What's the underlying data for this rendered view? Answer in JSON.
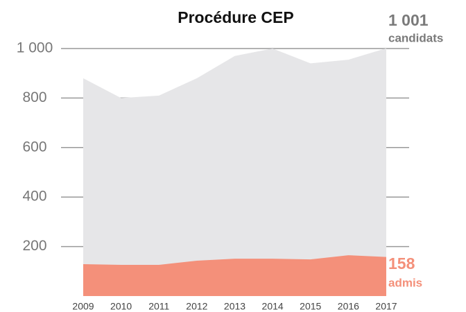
{
  "chart_data": {
    "type": "area",
    "title": "Procédure CEP",
    "categories": [
      "2009",
      "2010",
      "2011",
      "2012",
      "2013",
      "2014",
      "2015",
      "2016",
      "2017"
    ],
    "series": [
      {
        "name": "candidats",
        "color": "#e6e6e8",
        "label_color": "#7a7a7a",
        "end_label": "1 001",
        "values": [
          880,
          800,
          810,
          880,
          970,
          1000,
          940,
          955,
          1001
        ]
      },
      {
        "name": "admis",
        "color": "#f4907a",
        "label_color": "#f4907a",
        "end_label": "158",
        "values": [
          129,
          126,
          126,
          143,
          151,
          151,
          148,
          165,
          158
        ]
      }
    ],
    "ylim": [
      0,
      1000
    ],
    "yticks": [
      200,
      400,
      600,
      800,
      {
        "value": 1000,
        "label": "1 000"
      }
    ],
    "grid": true
  }
}
